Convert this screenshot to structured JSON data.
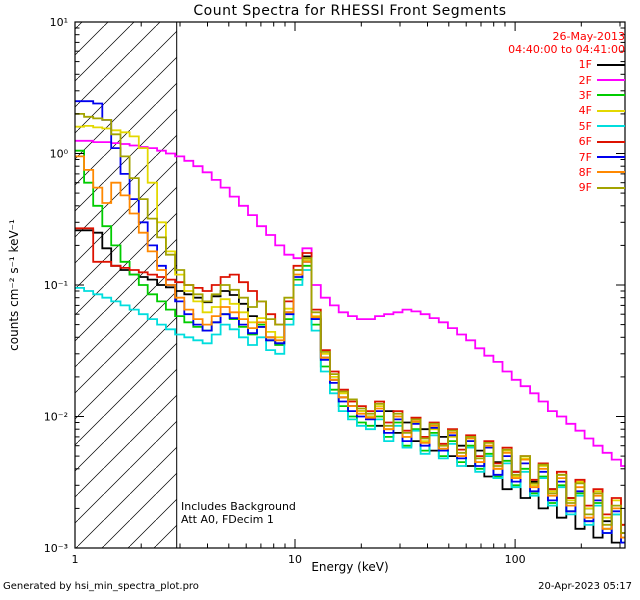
{
  "header": {
    "title": "Count Spectra for RHESSI Front Segments"
  },
  "meta": {
    "date": "26-May-2013",
    "time_range": "04:40:00 to 04:41:00"
  },
  "annotations": {
    "line1": "Includes Background",
    "line2": "Att A0, FDecim 1"
  },
  "footer": {
    "left": "Generated by hsi_min_spectra_plot.pro",
    "right": "20-Apr-2023 05:17"
  },
  "colors": {
    "legend_text": "#ff0000",
    "frame": "#000000"
  },
  "axes": {
    "xlabel": "Energy (keV)",
    "ylabel": "counts cm⁻² s⁻¹ keV⁻¹",
    "x_ticks": [
      {
        "value": 1,
        "label": "1"
      },
      {
        "value": 10,
        "label": "10"
      },
      {
        "value": 100,
        "label": "100"
      }
    ],
    "y_ticks": [
      {
        "value": 10,
        "label": "10¹"
      },
      {
        "value": 1,
        "label": "10⁰"
      },
      {
        "value": 0.1,
        "label": "10⁻¹"
      },
      {
        "value": 0.01,
        "label": "10⁻²"
      },
      {
        "value": 0.001,
        "label": "10⁻³"
      }
    ]
  },
  "chart_data": {
    "type": "line",
    "step": true,
    "x_scale": "log",
    "y_scale": "log",
    "title": "Count Spectra for RHESSI Front Segments",
    "xlabel": "Energy (keV)",
    "ylabel": "counts cm⁻² s⁻¹ keV⁻¹",
    "xlim": [
      1,
      316
    ],
    "ylim": [
      0.001,
      10
    ],
    "grid": false,
    "legend_position": "top-right",
    "hatch_region": {
      "x_min": 1,
      "x_max": 2.9
    },
    "energies_keV": [
      1.0,
      1.1,
      1.21,
      1.33,
      1.46,
      1.61,
      1.77,
      1.95,
      2.14,
      2.36,
      2.59,
      2.85,
      3.14,
      3.45,
      3.8,
      4.18,
      4.59,
      5.05,
      5.56,
      6.11,
      6.72,
      7.39,
      8.13,
      8.94,
      9.84,
      10.8,
      11.9,
      13.1,
      14.4,
      15.8,
      17.4,
      19.1,
      21.0,
      23.1,
      25.4,
      28.0,
      30.8,
      33.8,
      37.2,
      40.9,
      45.0,
      49.5,
      54.5,
      59.9,
      65.9,
      72.5,
      79.7,
      87.7,
      96.5,
      106,
      117,
      128,
      141,
      155,
      171,
      188,
      207,
      227,
      250,
      275,
      303
    ],
    "series": [
      {
        "name": "1F",
        "color": "#000000",
        "values": [
          0.26,
          0.26,
          0.25,
          0.19,
          0.14,
          0.13,
          0.12,
          0.115,
          0.11,
          0.1,
          0.096,
          0.09,
          0.085,
          0.08,
          0.074,
          0.082,
          0.09,
          0.084,
          0.072,
          0.058,
          0.048,
          0.04,
          0.036,
          0.062,
          0.13,
          0.165,
          0.055,
          0.028,
          0.019,
          0.014,
          0.012,
          0.011,
          0.01,
          0.0085,
          0.011,
          0.0075,
          0.009,
          0.0065,
          0.008,
          0.0055,
          0.007,
          0.005,
          0.006,
          0.0042,
          0.0055,
          0.0035,
          0.0045,
          0.0028,
          0.0038,
          0.0024,
          0.0032,
          0.002,
          0.0028,
          0.0017,
          0.0024,
          0.0014,
          0.002,
          0.0012,
          0.0016,
          0.0011,
          0.0013
        ]
      },
      {
        "name": "2F",
        "color": "#ff00ff",
        "values": [
          1.25,
          1.25,
          1.22,
          1.22,
          1.2,
          1.18,
          1.15,
          1.12,
          1.1,
          1.05,
          1.0,
          0.95,
          0.88,
          0.8,
          0.72,
          0.63,
          0.55,
          0.47,
          0.4,
          0.34,
          0.28,
          0.24,
          0.2,
          0.17,
          0.16,
          0.19,
          0.1,
          0.08,
          0.07,
          0.062,
          0.058,
          0.055,
          0.055,
          0.058,
          0.06,
          0.062,
          0.065,
          0.063,
          0.06,
          0.056,
          0.052,
          0.047,
          0.042,
          0.038,
          0.033,
          0.029,
          0.026,
          0.022,
          0.019,
          0.017,
          0.015,
          0.013,
          0.011,
          0.01,
          0.0088,
          0.0078,
          0.0068,
          0.006,
          0.0053,
          0.0047,
          0.0042
        ]
      },
      {
        "name": "3F",
        "color": "#00cc00",
        "values": [
          1.05,
          0.6,
          0.4,
          0.28,
          0.2,
          0.15,
          0.12,
          0.1,
          0.085,
          0.075,
          0.065,
          0.058,
          0.052,
          0.048,
          0.045,
          0.052,
          0.06,
          0.055,
          0.048,
          0.042,
          0.05,
          0.038,
          0.035,
          0.055,
          0.11,
          0.14,
          0.05,
          0.024,
          0.016,
          0.012,
          0.01,
          0.009,
          0.0085,
          0.01,
          0.007,
          0.009,
          0.006,
          0.008,
          0.0055,
          0.0075,
          0.005,
          0.0065,
          0.0045,
          0.006,
          0.004,
          0.0052,
          0.0035,
          0.0046,
          0.003,
          0.004,
          0.0026,
          0.0035,
          0.0022,
          0.003,
          0.0019,
          0.0026,
          0.0016,
          0.0022,
          0.0014,
          0.0018,
          0.0012
        ]
      },
      {
        "name": "4F",
        "color": "#e3d800",
        "values": [
          1.6,
          1.62,
          1.58,
          1.55,
          1.5,
          1.45,
          1.35,
          1.1,
          0.6,
          0.3,
          0.18,
          0.12,
          0.09,
          0.075,
          0.062,
          0.068,
          0.078,
          0.072,
          0.062,
          0.052,
          0.056,
          0.044,
          0.04,
          0.066,
          0.12,
          0.155,
          0.058,
          0.03,
          0.02,
          0.015,
          0.013,
          0.011,
          0.01,
          0.012,
          0.008,
          0.01,
          0.007,
          0.009,
          0.0065,
          0.008,
          0.0055,
          0.007,
          0.005,
          0.0065,
          0.0045,
          0.006,
          0.004,
          0.0055,
          0.0035,
          0.0048,
          0.003,
          0.0042,
          0.0027,
          0.0036,
          0.0023,
          0.0032,
          0.002,
          0.0027,
          0.0017,
          0.0023,
          0.0015
        ]
      },
      {
        "name": "5F",
        "color": "#00dddd",
        "values": [
          0.095,
          0.09,
          0.085,
          0.08,
          0.075,
          0.07,
          0.065,
          0.06,
          0.055,
          0.05,
          0.046,
          0.042,
          0.04,
          0.038,
          0.036,
          0.042,
          0.05,
          0.046,
          0.04,
          0.035,
          0.04,
          0.032,
          0.03,
          0.05,
          0.1,
          0.13,
          0.045,
          0.022,
          0.015,
          0.011,
          0.0095,
          0.0085,
          0.008,
          0.0095,
          0.0065,
          0.0085,
          0.0058,
          0.0078,
          0.0052,
          0.0072,
          0.0048,
          0.0062,
          0.0042,
          0.0058,
          0.0038,
          0.005,
          0.0034,
          0.0044,
          0.0029,
          0.0038,
          0.0025,
          0.0034,
          0.0021,
          0.0029,
          0.0018,
          0.0025,
          0.0015,
          0.0021,
          0.0013,
          0.0018,
          0.0011
        ]
      },
      {
        "name": "6F",
        "color": "#dd1100",
        "values": [
          0.27,
          0.27,
          0.15,
          0.15,
          0.14,
          0.135,
          0.13,
          0.125,
          0.12,
          0.115,
          0.11,
          0.105,
          0.1,
          0.095,
          0.09,
          0.1,
          0.115,
          0.12,
          0.105,
          0.09,
          0.075,
          0.06,
          0.05,
          0.075,
          0.14,
          0.175,
          0.065,
          0.032,
          0.022,
          0.016,
          0.013,
          0.012,
          0.011,
          0.013,
          0.009,
          0.011,
          0.0078,
          0.0098,
          0.007,
          0.009,
          0.0062,
          0.008,
          0.0056,
          0.0072,
          0.005,
          0.0065,
          0.0044,
          0.0058,
          0.0038,
          0.005,
          0.0033,
          0.0044,
          0.0028,
          0.0038,
          0.0024,
          0.0033,
          0.0021,
          0.0028,
          0.0018,
          0.0024,
          0.0015
        ]
      },
      {
        "name": "7F",
        "color": "#0000ee",
        "values": [
          2.5,
          2.5,
          2.4,
          1.8,
          1.1,
          0.7,
          0.45,
          0.3,
          0.2,
          0.14,
          0.1,
          0.075,
          0.06,
          0.05,
          0.045,
          0.052,
          0.06,
          0.056,
          0.05,
          0.043,
          0.048,
          0.038,
          0.036,
          0.06,
          0.115,
          0.15,
          0.055,
          0.027,
          0.018,
          0.013,
          0.011,
          0.01,
          0.0095,
          0.011,
          0.0075,
          0.0095,
          0.0065,
          0.0088,
          0.006,
          0.0082,
          0.0055,
          0.0072,
          0.0048,
          0.0065,
          0.0042,
          0.0058,
          0.0036,
          0.005,
          0.0032,
          0.0044,
          0.0027,
          0.0038,
          0.0023,
          0.0032,
          0.0019,
          0.0027,
          0.0016,
          0.0023,
          0.0013,
          0.0019,
          0.0011
        ]
      },
      {
        "name": "8F",
        "color": "#ff8800",
        "values": [
          0.95,
          0.75,
          0.55,
          0.42,
          0.6,
          0.48,
          0.35,
          0.25,
          0.18,
          0.13,
          0.1,
          0.08,
          0.065,
          0.055,
          0.05,
          0.058,
          0.068,
          0.062,
          0.055,
          0.047,
          0.052,
          0.04,
          0.038,
          0.062,
          0.12,
          0.15,
          0.057,
          0.028,
          0.019,
          0.014,
          0.012,
          0.0105,
          0.0098,
          0.0115,
          0.008,
          0.01,
          0.007,
          0.0092,
          0.0063,
          0.0085,
          0.0057,
          0.0075,
          0.005,
          0.0068,
          0.0045,
          0.006,
          0.004,
          0.0053,
          0.0034,
          0.0047,
          0.0029,
          0.004,
          0.0025,
          0.0034,
          0.0021,
          0.0029,
          0.0017,
          0.0025,
          0.0014,
          0.002,
          0.0012
        ]
      },
      {
        "name": "9F",
        "color": "#a3a300",
        "values": [
          2.0,
          1.9,
          1.85,
          1.8,
          1.4,
          0.95,
          0.65,
          0.45,
          0.32,
          0.23,
          0.17,
          0.13,
          0.1,
          0.085,
          0.075,
          0.085,
          0.1,
          0.092,
          0.08,
          0.068,
          0.075,
          0.055,
          0.05,
          0.08,
          0.13,
          0.16,
          0.062,
          0.031,
          0.021,
          0.0155,
          0.0135,
          0.0115,
          0.0105,
          0.0125,
          0.0085,
          0.0105,
          0.0075,
          0.0095,
          0.0068,
          0.0088,
          0.006,
          0.0078,
          0.0053,
          0.007,
          0.0048,
          0.0063,
          0.0042,
          0.0056,
          0.0036,
          0.005,
          0.0031,
          0.0043,
          0.0026,
          0.0036,
          0.0022,
          0.0031,
          0.0018,
          0.0026,
          0.0015,
          0.0021,
          0.0013
        ]
      }
    ]
  }
}
